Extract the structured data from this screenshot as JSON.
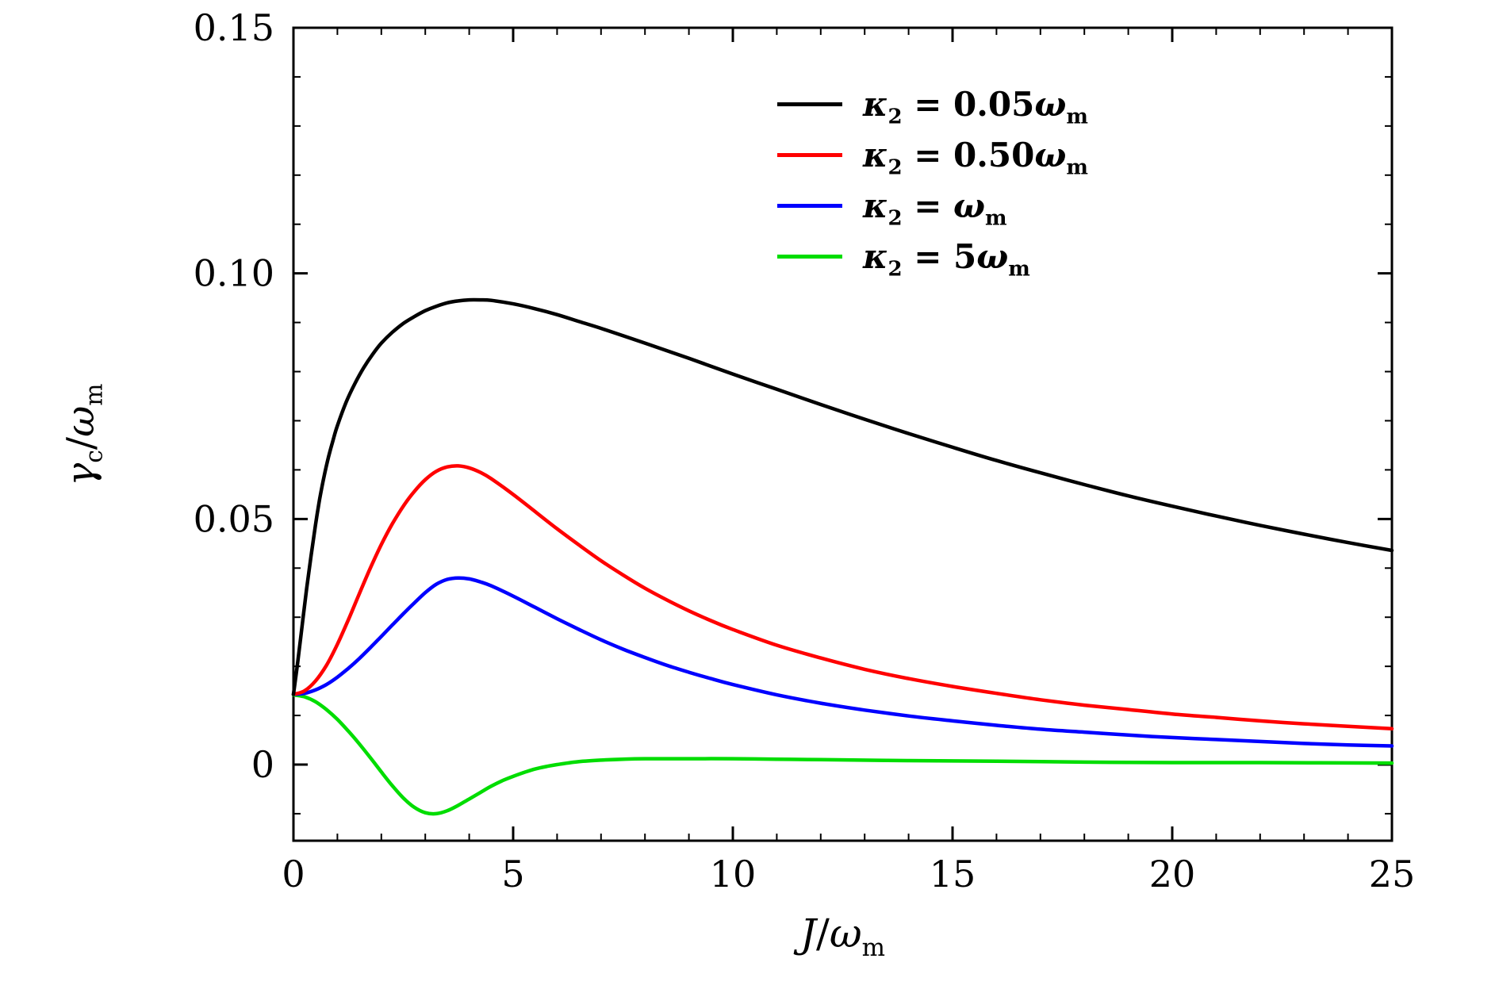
{
  "figure": {
    "background": "#ffffff"
  },
  "chart_data": {
    "type": "line",
    "title": "",
    "xlabel_parts": {
      "var": "J",
      "slash": "/",
      "omega": "ω",
      "sub": "m"
    },
    "ylabel_parts": {
      "var": "γ",
      "var_sub": "c",
      "slash": "/",
      "omega": "ω",
      "sub": "m"
    },
    "xlim": [
      0,
      25
    ],
    "ylim": [
      -0.0155,
      0.15
    ],
    "x_ticks": {
      "values": [
        0,
        5,
        10,
        15,
        20,
        25
      ],
      "labels": [
        "0",
        "5",
        "10",
        "15",
        "20",
        "25"
      ]
    },
    "y_ticks": {
      "values": [
        0,
        0.05,
        0.1,
        0.15
      ],
      "labels": [
        "0",
        "0.05",
        "0.10",
        "0.15"
      ]
    },
    "x_minor_step": 1,
    "y_minor_step": 0.01,
    "axis_color": "#000000",
    "grid": false,
    "legend_position": "top-right-inside",
    "series": [
      {
        "name": "kappa2 = 0.05 omega_m",
        "color": "#000000",
        "label": {
          "kappa": "κ",
          "kappa_sub": "2",
          "mid": " = 0.05",
          "omega": "ω",
          "omega_sub": "m"
        },
        "points": [
          [
            0,
            0.0143
          ],
          [
            0.1,
            0.021
          ],
          [
            0.2,
            0.0285
          ],
          [
            0.3,
            0.0358
          ],
          [
            0.4,
            0.0425
          ],
          [
            0.5,
            0.0487
          ],
          [
            0.6,
            0.0542
          ],
          [
            0.7,
            0.0588
          ],
          [
            0.8,
            0.0627
          ],
          [
            0.9,
            0.066
          ],
          [
            1,
            0.069
          ],
          [
            1.2,
            0.0738
          ],
          [
            1.4,
            0.0776
          ],
          [
            1.6,
            0.0808
          ],
          [
            1.8,
            0.0835
          ],
          [
            2,
            0.0858
          ],
          [
            2.25,
            0.088
          ],
          [
            2.5,
            0.0898
          ],
          [
            2.75,
            0.0912
          ],
          [
            3,
            0.0924
          ],
          [
            3.25,
            0.0933
          ],
          [
            3.5,
            0.094
          ],
          [
            3.75,
            0.0944
          ],
          [
            4,
            0.0946
          ],
          [
            4.25,
            0.0946
          ],
          [
            4.5,
            0.0945
          ],
          [
            5,
            0.0938
          ],
          [
            5.5,
            0.0928
          ],
          [
            6,
            0.0916
          ],
          [
            6.5,
            0.0902
          ],
          [
            7,
            0.0888
          ],
          [
            7.5,
            0.0873
          ],
          [
            8,
            0.0858
          ],
          [
            9,
            0.0827
          ],
          [
            10,
            0.0795
          ],
          [
            11,
            0.0764
          ],
          [
            12,
            0.0733
          ],
          [
            13,
            0.0703
          ],
          [
            14,
            0.0674
          ],
          [
            15,
            0.0646
          ],
          [
            16,
            0.0619
          ],
          [
            17,
            0.0594
          ],
          [
            18,
            0.057
          ],
          [
            19,
            0.0547
          ],
          [
            20,
            0.0526
          ],
          [
            21,
            0.0506
          ],
          [
            22,
            0.0487
          ],
          [
            23,
            0.0469
          ],
          [
            24,
            0.0452
          ],
          [
            25,
            0.0436
          ]
        ]
      },
      {
        "name": "kappa2 = 0.50 omega_m",
        "color": "#ff0000",
        "label": {
          "kappa": "κ",
          "kappa_sub": "2",
          "mid": " = 0.50",
          "omega": "ω",
          "omega_sub": "m"
        },
        "points": [
          [
            0,
            0.0143
          ],
          [
            0.25,
            0.015
          ],
          [
            0.5,
            0.017
          ],
          [
            0.75,
            0.0202
          ],
          [
            1,
            0.0245
          ],
          [
            1.25,
            0.0295
          ],
          [
            1.5,
            0.0348
          ],
          [
            1.75,
            0.04
          ],
          [
            2,
            0.0448
          ],
          [
            2.25,
            0.049
          ],
          [
            2.5,
            0.0526
          ],
          [
            2.75,
            0.0556
          ],
          [
            3,
            0.058
          ],
          [
            3.25,
            0.0597
          ],
          [
            3.5,
            0.0606
          ],
          [
            3.75,
            0.0608
          ],
          [
            4,
            0.0604
          ],
          [
            4.25,
            0.0595
          ],
          [
            4.5,
            0.0582
          ],
          [
            5,
            0.055
          ],
          [
            5.5,
            0.0515
          ],
          [
            6,
            0.048
          ],
          [
            6.5,
            0.0447
          ],
          [
            7,
            0.0415
          ],
          [
            7.5,
            0.0386
          ],
          [
            8,
            0.0359
          ],
          [
            8.5,
            0.0335
          ],
          [
            9,
            0.0313
          ],
          [
            9.5,
            0.0293
          ],
          [
            10,
            0.0275
          ],
          [
            11,
            0.0243
          ],
          [
            12,
            0.0217
          ],
          [
            13,
            0.0194
          ],
          [
            14,
            0.0175
          ],
          [
            15,
            0.0159
          ],
          [
            16,
            0.0145
          ],
          [
            17,
            0.0132
          ],
          [
            18,
            0.0121
          ],
          [
            19,
            0.0112
          ],
          [
            20,
            0.0103
          ],
          [
            21,
            0.0096
          ],
          [
            22,
            0.0089
          ],
          [
            23,
            0.0083
          ],
          [
            24,
            0.0078
          ],
          [
            25,
            0.0073
          ]
        ]
      },
      {
        "name": "kappa2 = omega_m",
        "color": "#0000ff",
        "label": {
          "kappa": "κ",
          "kappa_sub": "2",
          "mid": " = ",
          "omega": "ω",
          "omega_sub": "m"
        },
        "points": [
          [
            0,
            0.0143
          ],
          [
            0.25,
            0.0145
          ],
          [
            0.5,
            0.0152
          ],
          [
            0.75,
            0.0163
          ],
          [
            1,
            0.0178
          ],
          [
            1.25,
            0.0196
          ],
          [
            1.5,
            0.0216
          ],
          [
            1.75,
            0.0238
          ],
          [
            2,
            0.0261
          ],
          [
            2.25,
            0.0284
          ],
          [
            2.5,
            0.0307
          ],
          [
            2.75,
            0.0329
          ],
          [
            3,
            0.035
          ],
          [
            3.25,
            0.0367
          ],
          [
            3.5,
            0.0377
          ],
          [
            3.75,
            0.038
          ],
          [
            4,
            0.0378
          ],
          [
            4.25,
            0.0372
          ],
          [
            4.5,
            0.0364
          ],
          [
            5,
            0.0343
          ],
          [
            5.5,
            0.032
          ],
          [
            6,
            0.0297
          ],
          [
            6.5,
            0.0275
          ],
          [
            7,
            0.0254
          ],
          [
            7.5,
            0.0235
          ],
          [
            8,
            0.0218
          ],
          [
            8.5,
            0.0202
          ],
          [
            9,
            0.0188
          ],
          [
            9.5,
            0.0175
          ],
          [
            10,
            0.0163
          ],
          [
            11,
            0.0142
          ],
          [
            12,
            0.0125
          ],
          [
            13,
            0.0111
          ],
          [
            14,
            0.0099
          ],
          [
            15,
            0.0089
          ],
          [
            16,
            0.008
          ],
          [
            17,
            0.0072
          ],
          [
            18,
            0.0066
          ],
          [
            19,
            0.006
          ],
          [
            20,
            0.0055
          ],
          [
            21,
            0.0051
          ],
          [
            22,
            0.0047
          ],
          [
            23,
            0.0043
          ],
          [
            24,
            0.004
          ],
          [
            25,
            0.0038
          ]
        ]
      },
      {
        "name": "kappa2 = 5 omega_m",
        "color": "#00dd00",
        "label": {
          "kappa": "κ",
          "kappa_sub": "2",
          "mid": " = 5",
          "omega": "ω",
          "omega_sub": "m"
        },
        "points": [
          [
            0,
            0.0142
          ],
          [
            0.25,
            0.0138
          ],
          [
            0.5,
            0.0128
          ],
          [
            0.75,
            0.0112
          ],
          [
            1,
            0.0092
          ],
          [
            1.25,
            0.0068
          ],
          [
            1.5,
            0.0042
          ],
          [
            1.75,
            0.0014
          ],
          [
            2,
            -0.0015
          ],
          [
            2.25,
            -0.0043
          ],
          [
            2.5,
            -0.0068
          ],
          [
            2.75,
            -0.0087
          ],
          [
            3,
            -0.0098
          ],
          [
            3.25,
            -0.01
          ],
          [
            3.5,
            -0.0094
          ],
          [
            3.75,
            -0.0083
          ],
          [
            4,
            -0.007
          ],
          [
            4.25,
            -0.0057
          ],
          [
            4.5,
            -0.0044
          ],
          [
            4.75,
            -0.0033
          ],
          [
            5,
            -0.0024
          ],
          [
            5.25,
            -0.0016
          ],
          [
            5.5,
            -0.0009
          ],
          [
            5.75,
            -0.0004
          ],
          [
            6,
            0
          ],
          [
            6.5,
            0.0006
          ],
          [
            7,
            0.0009
          ],
          [
            7.5,
            0.0011
          ],
          [
            8,
            0.0012
          ],
          [
            9,
            0.0012
          ],
          [
            10,
            0.0012
          ],
          [
            11,
            0.0011
          ],
          [
            12,
            0.001
          ],
          [
            14,
            0.0008
          ],
          [
            16,
            0.0007
          ],
          [
            18,
            0.0005
          ],
          [
            20,
            0.0004
          ],
          [
            22,
            0.0004
          ],
          [
            25,
            0.0003
          ]
        ]
      }
    ]
  }
}
